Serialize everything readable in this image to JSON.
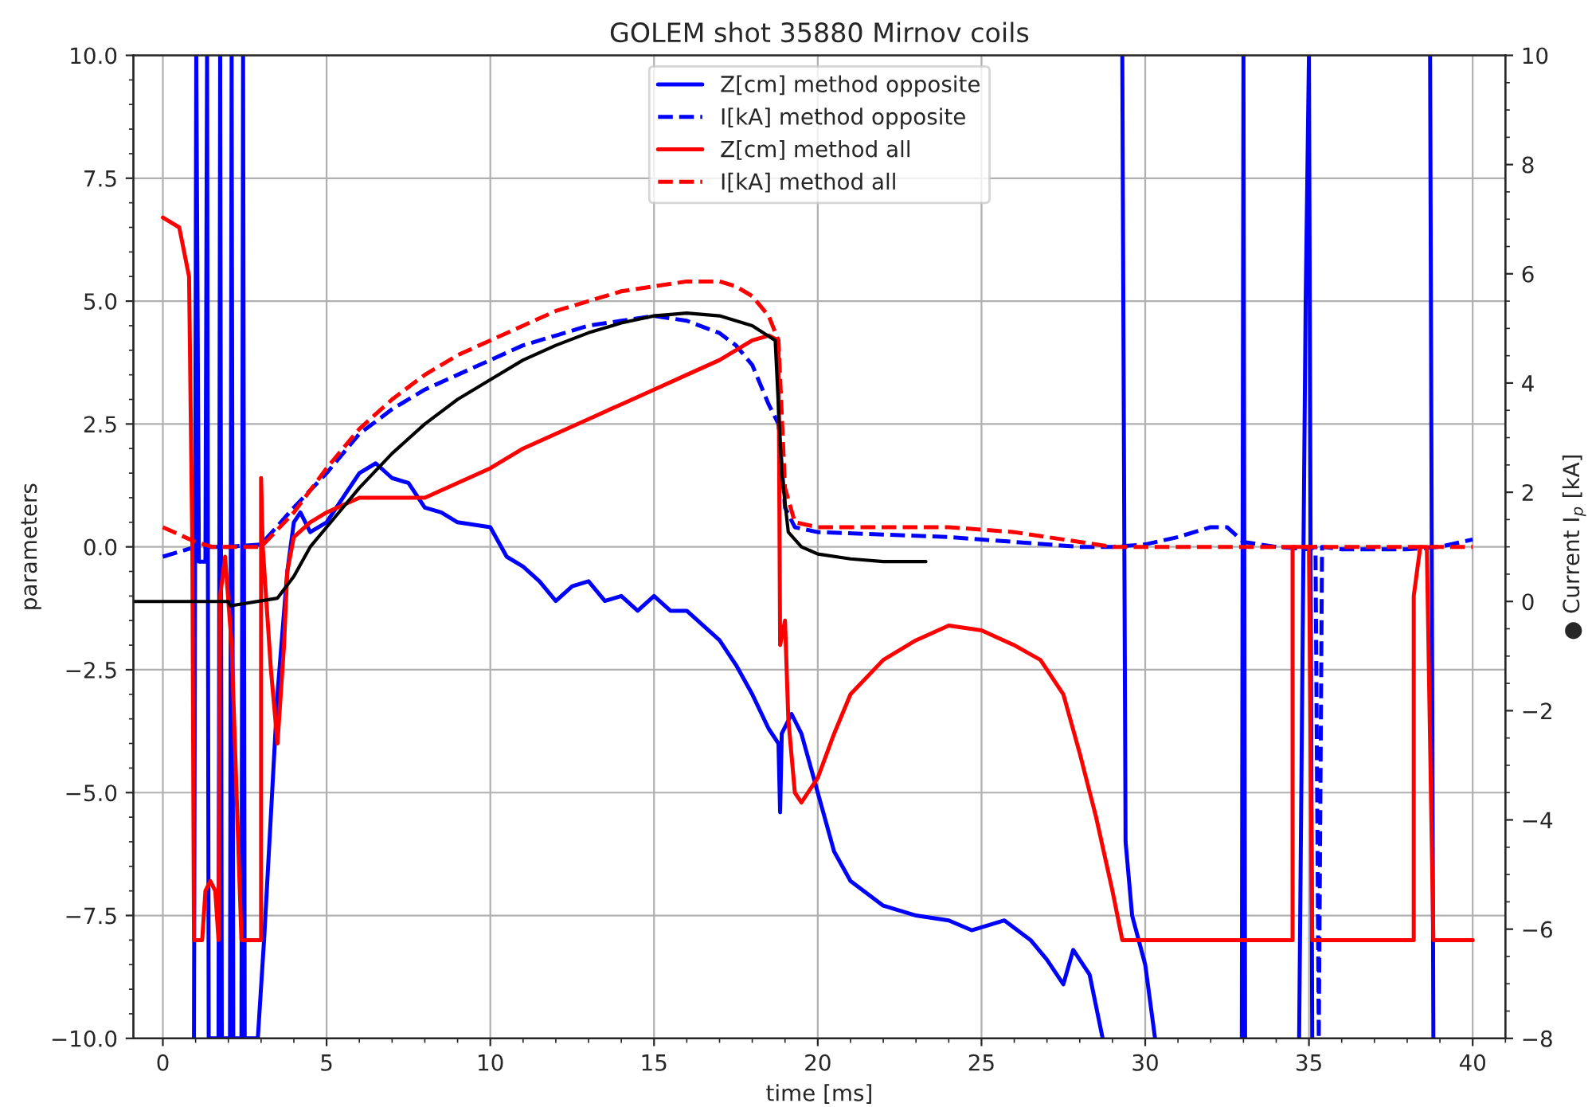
{
  "chart_data": {
    "type": "line",
    "title": "GOLEM shot 35880 Mirnov coils",
    "xlabel": "time [ms]",
    "ylabel": "parameters",
    "y2label": "● Current I$_{p}$ [kA]",
    "xlim": [
      -0.9,
      41
    ],
    "xticks": [
      0,
      5,
      10,
      15,
      20,
      25,
      30,
      35,
      40
    ],
    "ylim": [
      -10,
      10
    ],
    "yticks": [
      {
        "value": -10,
        "label": "−10.0"
      },
      {
        "value": -7.5,
        "label": "−7.5"
      },
      {
        "value": -5,
        "label": "−5.0"
      },
      {
        "value": -2.5,
        "label": "−2.5"
      },
      {
        "value": 0,
        "label": "0.0"
      },
      {
        "value": 2.5,
        "label": "2.5"
      },
      {
        "value": 5,
        "label": "5.0"
      },
      {
        "value": 7.5,
        "label": "7.5"
      },
      {
        "value": 10,
        "label": "10.0"
      }
    ],
    "y2lim": [
      -8,
      10
    ],
    "y2ticks": [
      {
        "value": -8,
        "label": "−8"
      },
      {
        "value": -6,
        "label": "−6"
      },
      {
        "value": -4,
        "label": "−4"
      },
      {
        "value": -2,
        "label": "−2"
      },
      0,
      2,
      4,
      6,
      8,
      10
    ],
    "grid": true,
    "legend": "top",
    "marker": "none",
    "series": [
      {
        "name": "Z[cm] method opposite",
        "color": "#0000ff",
        "line_style": "solid",
        "x": [
          0.95,
          1.02,
          1.1,
          1.3,
          1.35,
          1.4,
          1.7,
          1.75,
          1.8,
          2.05,
          2.1,
          2.15,
          2.4,
          2.45,
          2.5,
          2.9,
          3.1,
          3.5,
          3.8,
          4.0,
          4.2,
          4.5,
          5,
          5.5,
          6,
          6.5,
          7,
          7.5,
          8,
          8.5,
          9,
          10,
          10.5,
          11,
          11.5,
          12,
          12.5,
          13,
          13.5,
          14,
          14.5,
          15,
          15.5,
          16,
          16.5,
          17,
          17.5,
          18,
          18.5,
          18.8,
          18.85,
          18.9,
          19.2,
          19.5,
          20,
          20.5,
          21,
          22,
          23,
          24,
          24.7,
          25.7,
          26.5,
          27,
          27.5,
          27.8,
          28.3,
          28.7,
          29.2,
          29.3,
          29.4,
          29.6,
          30.0,
          30.3,
          30.4,
          32.95,
          33.0,
          33.05,
          33.1,
          34.7,
          34.9,
          35.0,
          35.1,
          38.6,
          38.7,
          38.8
        ],
        "values": [
          -10,
          10,
          -0.3,
          -0.3,
          10,
          -10,
          -10,
          10,
          -10,
          -10,
          10,
          -10,
          -10,
          10,
          -10,
          -10,
          -7.9,
          -3.0,
          -0.5,
          0.5,
          0.7,
          0.3,
          0.5,
          1.0,
          1.5,
          1.7,
          1.4,
          1.3,
          0.8,
          0.7,
          0.5,
          0.4,
          -0.2,
          -0.4,
          -0.7,
          -1.1,
          -0.8,
          -0.7,
          -1.1,
          -1.0,
          -1.3,
          -1.0,
          -1.3,
          -1.3,
          -1.6,
          -1.9,
          -2.4,
          -3.0,
          -3.7,
          -4.0,
          -5.4,
          -3.8,
          -3.4,
          -3.8,
          -5.0,
          -6.2,
          -6.8,
          -7.3,
          -7.5,
          -7.6,
          -7.8,
          -7.6,
          -8.0,
          -8.4,
          -8.9,
          -8.2,
          -8.7,
          -10,
          null,
          10,
          -6.0,
          -7.5,
          -8.5,
          -10,
          null,
          -10,
          10,
          -10,
          null,
          -10,
          5,
          10,
          -10,
          null,
          10,
          -10
        ]
      },
      {
        "name": "I[kA] method opposite",
        "color": "#0000ff",
        "line_style": "dashed",
        "x": [
          0,
          1,
          2,
          3,
          4,
          5,
          6,
          7,
          8,
          9,
          10,
          11,
          12,
          13,
          14,
          15,
          16,
          17,
          17.5,
          18,
          18.5,
          18.8,
          19,
          19.3,
          20,
          22,
          24,
          26,
          28,
          29,
          30,
          31,
          32,
          32.5,
          33,
          34,
          35,
          35.2,
          35.3,
          35.4,
          36,
          38,
          39,
          40
        ],
        "values": [
          -0.2,
          0,
          0,
          0.05,
          0.8,
          1.5,
          2.3,
          2.8,
          3.2,
          3.5,
          3.8,
          4.1,
          4.3,
          4.5,
          4.6,
          4.7,
          4.6,
          4.35,
          4.1,
          3.7,
          2.9,
          2.5,
          0.8,
          0.4,
          0.3,
          0.25,
          0.2,
          0.1,
          0.0,
          0.0,
          0.05,
          0.2,
          0.4,
          0.4,
          0.1,
          0.0,
          -0.05,
          0,
          -10,
          0,
          -0.05,
          -0.05,
          0.0,
          0.15
        ]
      },
      {
        "name": "Z[cm] method all",
        "color": "#ff0000",
        "line_style": "solid",
        "x": [
          0,
          0.5,
          0.8,
          0.9,
          0.95,
          1.2,
          1.3,
          1.45,
          1.6,
          1.7,
          1.75,
          1.9,
          2.1,
          2.4,
          3.0,
          3.0,
          3.05,
          3.1,
          3.3,
          3.5,
          3.7,
          3.8,
          4,
          4.5,
          5,
          6,
          7,
          8,
          9,
          10,
          11,
          12,
          13,
          14,
          15,
          16,
          17,
          18,
          18.5,
          18.8,
          18.85,
          19,
          19.1,
          19.3,
          19.5,
          20,
          20.5,
          21,
          22,
          23,
          24,
          25,
          26,
          26.8,
          27.5,
          28,
          28.5,
          29,
          29.3,
          34.5,
          34.5,
          35.0,
          35.1,
          35.4,
          38.2,
          38.2,
          38.4,
          38.6,
          38.8,
          40
        ],
        "values": [
          6.7,
          6.5,
          5.5,
          0,
          -8,
          -8,
          -7,
          -6.8,
          -7,
          -8,
          -1,
          -0.2,
          -2,
          -8,
          -8,
          1.4,
          0,
          -0.5,
          -2.5,
          -4.0,
          -2,
          -0.5,
          0.2,
          0.5,
          0.7,
          1.0,
          1.0,
          1.0,
          1.3,
          1.6,
          2.0,
          2.3,
          2.6,
          2.9,
          3.2,
          3.5,
          3.8,
          4.2,
          4.3,
          4.2,
          -2,
          -1.5,
          -3.5,
          -5.0,
          -5.2,
          -4.7,
          -3.8,
          -3.0,
          -2.3,
          -1.9,
          -1.6,
          -1.7,
          -2.0,
          -2.3,
          -3.0,
          -4.2,
          -5.5,
          -7.0,
          -8.0,
          -8.0,
          0,
          0,
          -8,
          -8,
          -8,
          -1,
          0,
          0,
          -8,
          -8
        ]
      },
      {
        "name": "I[kA] method all",
        "color": "#ff0000",
        "line_style": "dashed",
        "x": [
          0,
          1,
          1.5,
          3,
          4,
          5,
          6,
          7,
          8,
          9,
          10,
          11,
          12,
          13,
          14,
          15,
          16,
          17,
          17.5,
          18,
          18.5,
          18.8,
          19,
          19.3,
          20,
          22,
          24,
          26,
          28,
          29,
          30,
          35,
          40
        ],
        "values": [
          0.4,
          0.1,
          0,
          0,
          0.7,
          1.6,
          2.4,
          3.0,
          3.5,
          3.9,
          4.2,
          4.5,
          4.8,
          5.0,
          5.2,
          5.3,
          5.4,
          5.4,
          5.3,
          5.1,
          4.7,
          4.2,
          1.2,
          0.5,
          0.4,
          0.4,
          0.4,
          0.3,
          0.1,
          0.0,
          0.0,
          0.0,
          0.0
        ]
      },
      {
        "color": "#000000",
        "line_style": "solid",
        "axis": "y2",
        "x": [
          -0.9,
          2,
          2.05,
          3.5,
          4,
          4.5,
          5,
          6,
          7,
          8,
          9,
          10,
          11,
          12,
          13,
          14,
          15,
          16,
          17,
          18,
          18.7,
          18.9,
          19.1,
          19.5,
          20,
          21,
          22,
          23.3
        ],
        "values": [
          0.0,
          0.0,
          -0.08,
          0.06,
          0.46,
          1.0,
          1.36,
          2.08,
          2.71,
          3.25,
          3.7,
          4.06,
          4.42,
          4.69,
          4.92,
          5.1,
          5.23,
          5.28,
          5.23,
          5.05,
          4.78,
          2.35,
          1.27,
          1.0,
          0.87,
          0.78,
          0.73,
          0.73
        ]
      }
    ]
  }
}
